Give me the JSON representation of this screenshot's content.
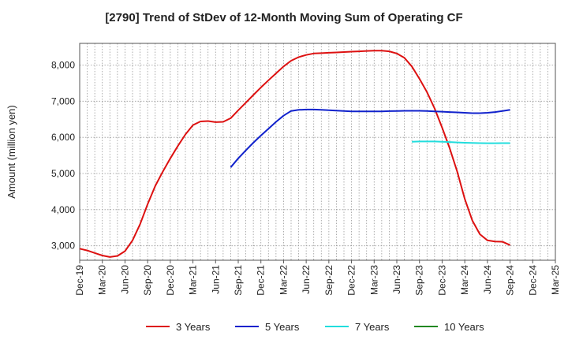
{
  "chart_data": {
    "type": "line",
    "title": "[2790]  Trend of StDev of 12-Month Moving Sum of Operating CF",
    "xlabel": "",
    "ylabel": "Amount (million yen)",
    "ylim": [
      2600,
      8600
    ],
    "yticks": [
      3000,
      4000,
      5000,
      6000,
      7000,
      8000
    ],
    "ytick_labels": [
      "3,000",
      "4,000",
      "5,000",
      "6,000",
      "7,000",
      "8,000"
    ],
    "xticks": [
      "Dec-19",
      "Mar-20",
      "Jun-20",
      "Sep-20",
      "Dec-20",
      "Mar-21",
      "Jun-21",
      "Sep-21",
      "Dec-21",
      "Mar-22",
      "Jun-22",
      "Sep-22",
      "Dec-22",
      "Mar-23",
      "Jun-23",
      "Sep-23",
      "Dec-23",
      "Mar-24",
      "Jun-24",
      "Sep-24",
      "Dec-24",
      "Mar-25"
    ],
    "x_start": "Dec-19",
    "grid": true,
    "legend_position": "bottom",
    "series": [
      {
        "name": "3 Years",
        "color": "#dd1111",
        "x": [
          "Dec-19",
          "Jan-20",
          "Feb-20",
          "Mar-20",
          "Apr-20",
          "May-20",
          "Jun-20",
          "Jul-20",
          "Aug-20",
          "Sep-20",
          "Oct-20",
          "Nov-20",
          "Dec-20",
          "Jan-21",
          "Feb-21",
          "Mar-21",
          "Apr-21",
          "May-21",
          "Jun-21",
          "Jul-21",
          "Aug-21",
          "Sep-21",
          "Oct-21",
          "Nov-21",
          "Dec-21",
          "Jan-22",
          "Feb-22",
          "Mar-22",
          "Apr-22",
          "May-22",
          "Jun-22",
          "Jul-22",
          "Aug-22",
          "Sep-22",
          "Oct-22",
          "Nov-22",
          "Dec-22",
          "Jan-23",
          "Feb-23",
          "Mar-23",
          "Apr-23",
          "May-23",
          "Jun-23",
          "Jul-23",
          "Aug-23",
          "Sep-23",
          "Oct-23",
          "Nov-23",
          "Dec-23",
          "Jan-24",
          "Feb-24",
          "Mar-24",
          "Apr-24",
          "May-24",
          "Jun-24",
          "Jul-24",
          "Aug-24",
          "Sep-24"
        ],
        "values": [
          2920,
          2870,
          2800,
          2730,
          2690,
          2720,
          2850,
          3150,
          3600,
          4150,
          4650,
          5050,
          5420,
          5760,
          6080,
          6340,
          6440,
          6450,
          6420,
          6430,
          6530,
          6750,
          6960,
          7170,
          7380,
          7580,
          7770,
          7960,
          8120,
          8220,
          8280,
          8320,
          8330,
          8340,
          8350,
          8360,
          8370,
          8380,
          8390,
          8400,
          8400,
          8380,
          8320,
          8200,
          7960,
          7620,
          7250,
          6800,
          6270,
          5700,
          5050,
          4300,
          3700,
          3320,
          3150,
          3120,
          3110,
          3020
        ]
      },
      {
        "name": "5 Years",
        "color": "#1122cc",
        "x": [
          "Aug-21",
          "Sep-21",
          "Oct-21",
          "Nov-21",
          "Dec-21",
          "Jan-22",
          "Feb-22",
          "Mar-22",
          "Apr-22",
          "May-22",
          "Jun-22",
          "Jul-22",
          "Aug-22",
          "Sep-22",
          "Oct-22",
          "Nov-22",
          "Dec-22",
          "Jan-23",
          "Feb-23",
          "Mar-23",
          "Apr-23",
          "May-23",
          "Jun-23",
          "Jul-23",
          "Aug-23",
          "Sep-23",
          "Oct-23",
          "Nov-23",
          "Dec-23",
          "Jan-24",
          "Feb-24",
          "Mar-24",
          "Apr-24",
          "May-24",
          "Jun-24",
          "Jul-24",
          "Aug-24",
          "Sep-24"
        ],
        "values": [
          5170,
          5420,
          5640,
          5850,
          6050,
          6240,
          6430,
          6600,
          6730,
          6760,
          6770,
          6770,
          6760,
          6750,
          6740,
          6730,
          6720,
          6720,
          6720,
          6720,
          6720,
          6725,
          6730,
          6735,
          6735,
          6735,
          6730,
          6720,
          6710,
          6700,
          6690,
          6680,
          6670,
          6670,
          6680,
          6700,
          6730,
          6760
        ]
      },
      {
        "name": "7 Years",
        "color": "#22dddd",
        "x": [
          "Aug-23",
          "Sep-23",
          "Oct-23",
          "Nov-23",
          "Dec-23",
          "Jan-24",
          "Feb-24",
          "Mar-24",
          "Apr-24",
          "May-24",
          "Jun-24",
          "Jul-24",
          "Aug-24",
          "Sep-24"
        ],
        "values": [
          5880,
          5885,
          5885,
          5885,
          5880,
          5870,
          5860,
          5850,
          5845,
          5840,
          5838,
          5838,
          5840,
          5840
        ]
      },
      {
        "name": "10 Years",
        "color": "#228822",
        "x": [],
        "values": []
      }
    ]
  }
}
